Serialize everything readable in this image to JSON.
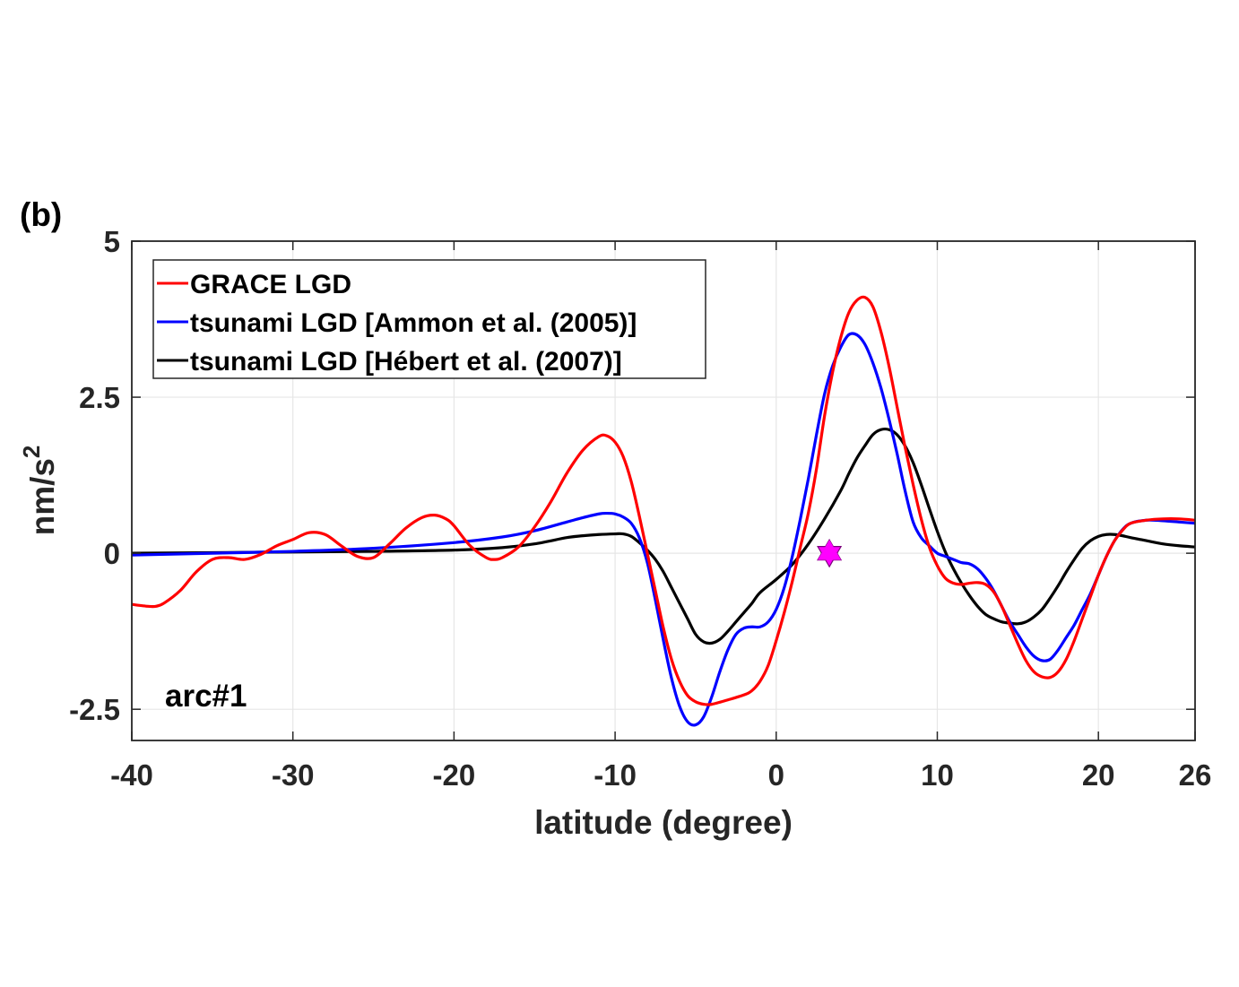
{
  "chart_data": {
    "type": "line",
    "panel_label": "(b)",
    "annotation": "arc#1",
    "xlabel": "latitude (degree)",
    "ylabel": "nm/s",
    "ylabel_sup": "2",
    "xlim": [
      -40,
      26
    ],
    "ylim": [
      -3,
      5
    ],
    "xticks": [
      -40,
      -30,
      -20,
      -10,
      0,
      10,
      20,
      26
    ],
    "xtick_labels": [
      "-40",
      "-30",
      "-20",
      "-10",
      "0",
      "10",
      "20",
      "26"
    ],
    "yticks": [
      -2.5,
      0,
      2.5,
      5
    ],
    "ytick_labels": [
      "-2.5",
      "0",
      "2.5",
      "5"
    ],
    "grid": true,
    "legend_position": "top-left",
    "series": [
      {
        "name": "GRACE LGD",
        "color": "#ff0000",
        "x": [
          -40,
          -39,
          -38.5,
          -38,
          -37,
          -36,
          -35,
          -34,
          -33,
          -32,
          -31,
          -30,
          -29,
          -28,
          -27,
          -26,
          -25,
          -24,
          -23,
          -22,
          -21.2,
          -20.5,
          -20,
          -19,
          -18,
          -17.5,
          -17,
          -16,
          -15,
          -14,
          -13,
          -12,
          -11,
          -10.5,
          -10,
          -9.5,
          -9,
          -8.5,
          -8,
          -7.5,
          -7,
          -6.5,
          -6,
          -5.5,
          -5,
          -4.5,
          -4,
          -3,
          -2,
          -1.5,
          -1,
          -0.5,
          0,
          0.5,
          1,
          1.5,
          2,
          2.5,
          3,
          3.5,
          4,
          4.5,
          5,
          5.5,
          6,
          6.5,
          7,
          7.5,
          8,
          8.5,
          9,
          9.5,
          10,
          10.5,
          11,
          11.5,
          12,
          12.5,
          13,
          13.5,
          14,
          14.5,
          15,
          15.5,
          16,
          16.5,
          17,
          17.5,
          18,
          18.5,
          19,
          19.5,
          20,
          20.5,
          21,
          21.5,
          22,
          23,
          24,
          25,
          26
        ],
        "y": [
          -0.82,
          -0.85,
          -0.85,
          -0.8,
          -0.6,
          -0.3,
          -0.1,
          -0.07,
          -0.1,
          -0.02,
          0.12,
          0.22,
          0.33,
          0.3,
          0.12,
          -0.05,
          -0.07,
          0.15,
          0.4,
          0.57,
          0.61,
          0.55,
          0.44,
          0.12,
          -0.07,
          -0.1,
          -0.07,
          0.1,
          0.42,
          0.82,
          1.28,
          1.65,
          1.87,
          1.88,
          1.78,
          1.55,
          1.15,
          0.6,
          0.0,
          -0.6,
          -1.2,
          -1.7,
          -2.05,
          -2.28,
          -2.38,
          -2.42,
          -2.42,
          -2.35,
          -2.27,
          -2.2,
          -2.05,
          -1.8,
          -1.4,
          -0.95,
          -0.45,
          0.1,
          0.65,
          1.35,
          2.2,
          2.9,
          3.45,
          3.85,
          4.05,
          4.1,
          3.95,
          3.55,
          3.0,
          2.35,
          1.7,
          1.1,
          0.55,
          0.1,
          -0.2,
          -0.4,
          -0.48,
          -0.5,
          -0.48,
          -0.47,
          -0.5,
          -0.62,
          -0.85,
          -1.15,
          -1.45,
          -1.72,
          -1.9,
          -1.98,
          -1.99,
          -1.9,
          -1.7,
          -1.4,
          -1.05,
          -0.7,
          -0.35,
          -0.05,
          0.2,
          0.37,
          0.48,
          0.53,
          0.55,
          0.55,
          0.53
        ]
      },
      {
        "name": "tsunami LGD [Ammon et al. (2005)]",
        "color": "#0000ff",
        "x": [
          -40,
          -35,
          -30,
          -25,
          -20,
          -17,
          -15,
          -13,
          -12,
          -11,
          -10.5,
          -10,
          -9.5,
          -9,
          -8.5,
          -8,
          -7.5,
          -7,
          -6.5,
          -6,
          -5.5,
          -5,
          -4.5,
          -4,
          -3.5,
          -3,
          -2.5,
          -2,
          -1.5,
          -1,
          -0.5,
          0,
          0.5,
          1,
          1.5,
          2,
          2.5,
          3,
          3.5,
          4,
          4.5,
          5,
          5.5,
          6,
          6.5,
          7,
          7.5,
          8,
          8.5,
          9,
          9.5,
          10,
          10.5,
          11,
          11.5,
          12,
          12.5,
          13,
          13.5,
          14,
          14.5,
          15,
          15.5,
          16,
          16.5,
          17,
          17.5,
          18,
          18.5,
          19,
          19.5,
          20,
          20.5,
          21,
          21.5,
          22,
          23,
          24,
          25,
          26
        ],
        "y": [
          -0.03,
          0.0,
          0.03,
          0.08,
          0.17,
          0.26,
          0.36,
          0.5,
          0.57,
          0.63,
          0.64,
          0.63,
          0.58,
          0.48,
          0.25,
          -0.15,
          -0.75,
          -1.4,
          -2.0,
          -2.45,
          -2.7,
          -2.75,
          -2.62,
          -2.3,
          -1.9,
          -1.55,
          -1.3,
          -1.2,
          -1.18,
          -1.18,
          -1.1,
          -0.9,
          -0.55,
          -0.05,
          0.55,
          1.2,
          1.9,
          2.55,
          3.0,
          3.3,
          3.5,
          3.5,
          3.35,
          3.05,
          2.65,
          2.15,
          1.6,
          1.0,
          0.5,
          0.25,
          0.12,
          0.0,
          -0.05,
          -0.1,
          -0.15,
          -0.17,
          -0.25,
          -0.4,
          -0.6,
          -0.85,
          -1.1,
          -1.3,
          -1.5,
          -1.65,
          -1.72,
          -1.7,
          -1.55,
          -1.35,
          -1.15,
          -0.9,
          -0.65,
          -0.35,
          -0.05,
          0.2,
          0.38,
          0.48,
          0.53,
          0.52,
          0.5,
          0.48
        ]
      },
      {
        "name": "tsunami LGD [Hébert et al. (2007)]",
        "color": "#000000",
        "x": [
          -40,
          -35,
          -30,
          -25,
          -20,
          -17,
          -15,
          -13,
          -12,
          -11,
          -10,
          -9.5,
          -9,
          -8.5,
          -8,
          -7.5,
          -7,
          -6.5,
          -6,
          -5.5,
          -5,
          -4.5,
          -4,
          -3.5,
          -3,
          -2.5,
          -2,
          -1.5,
          -1,
          0,
          1,
          2,
          3,
          4,
          4.5,
          5,
          5.5,
          6,
          6.5,
          7,
          7.5,
          8,
          8.5,
          9,
          9.5,
          10,
          10.5,
          11,
          11.5,
          12,
          12.5,
          13,
          13.5,
          14,
          14.5,
          15,
          15.5,
          16,
          16.5,
          17,
          17.5,
          18,
          18.5,
          19,
          19.5,
          20,
          20.5,
          21,
          21.5,
          22,
          23,
          24,
          25,
          26
        ],
        "y": [
          0.0,
          0.01,
          0.02,
          0.03,
          0.05,
          0.09,
          0.15,
          0.25,
          0.28,
          0.3,
          0.31,
          0.31,
          0.27,
          0.17,
          0.05,
          -0.1,
          -0.3,
          -0.55,
          -0.8,
          -1.05,
          -1.3,
          -1.42,
          -1.44,
          -1.38,
          -1.25,
          -1.1,
          -0.95,
          -0.8,
          -0.63,
          -0.42,
          -0.18,
          0.15,
          0.55,
          1.0,
          1.27,
          1.52,
          1.72,
          1.9,
          1.98,
          1.98,
          1.9,
          1.72,
          1.45,
          1.1,
          0.72,
          0.35,
          0.02,
          -0.25,
          -0.48,
          -0.68,
          -0.85,
          -0.98,
          -1.05,
          -1.1,
          -1.12,
          -1.13,
          -1.1,
          -1.02,
          -0.9,
          -0.72,
          -0.52,
          -0.3,
          -0.1,
          0.08,
          0.2,
          0.27,
          0.3,
          0.3,
          0.28,
          0.25,
          0.2,
          0.15,
          0.12,
          0.1
        ]
      }
    ],
    "marker": {
      "name": "epicenter-star",
      "x": 3.3,
      "y": 0,
      "color": "#ff00ff",
      "symbol": "hexagram"
    }
  }
}
